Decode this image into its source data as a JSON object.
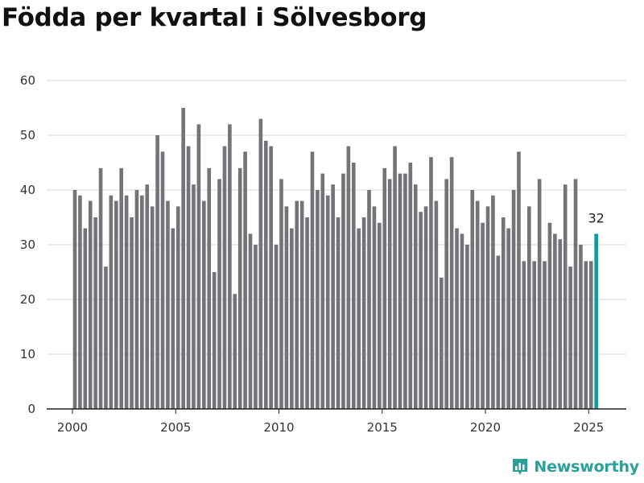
{
  "title": "Födda per kvartal i Sölvesborg",
  "brand": {
    "name": "Newsworthy",
    "logo_icon": "newsworthy-logo-icon"
  },
  "chart_data": {
    "type": "bar",
    "title": "Födda per kvartal i Sölvesborg",
    "xlabel": "",
    "ylabel": "",
    "ylim": [
      0,
      60
    ],
    "yticks": [
      0,
      10,
      20,
      30,
      40,
      50,
      60
    ],
    "xticks": [
      "2000",
      "2005",
      "2010",
      "2015",
      "2020",
      "2025"
    ],
    "x_start": "2000 Q1",
    "grid": true,
    "colors": {
      "bar": "#737378",
      "highlight": "#129c99",
      "grid": "#d9d9d9",
      "axis": "#222222"
    },
    "highlight_label": "32",
    "values": [
      40,
      39,
      33,
      38,
      35,
      44,
      26,
      39,
      38,
      44,
      39,
      35,
      40,
      39,
      41,
      37,
      50,
      47,
      38,
      33,
      37,
      55,
      48,
      41,
      52,
      38,
      44,
      25,
      42,
      48,
      52,
      21,
      44,
      47,
      32,
      30,
      53,
      49,
      48,
      30,
      42,
      37,
      33,
      38,
      38,
      35,
      47,
      40,
      43,
      39,
      41,
      35,
      43,
      48,
      45,
      33,
      35,
      40,
      37,
      34,
      44,
      42,
      48,
      43,
      43,
      45,
      41,
      36,
      37,
      46,
      38,
      24,
      42,
      46,
      33,
      32,
      30,
      40,
      38,
      34,
      37,
      39,
      28,
      35,
      33,
      40,
      47,
      27,
      37,
      27,
      42,
      27,
      34,
      32,
      31,
      41,
      26,
      42,
      30,
      27,
      27,
      32
    ]
  }
}
